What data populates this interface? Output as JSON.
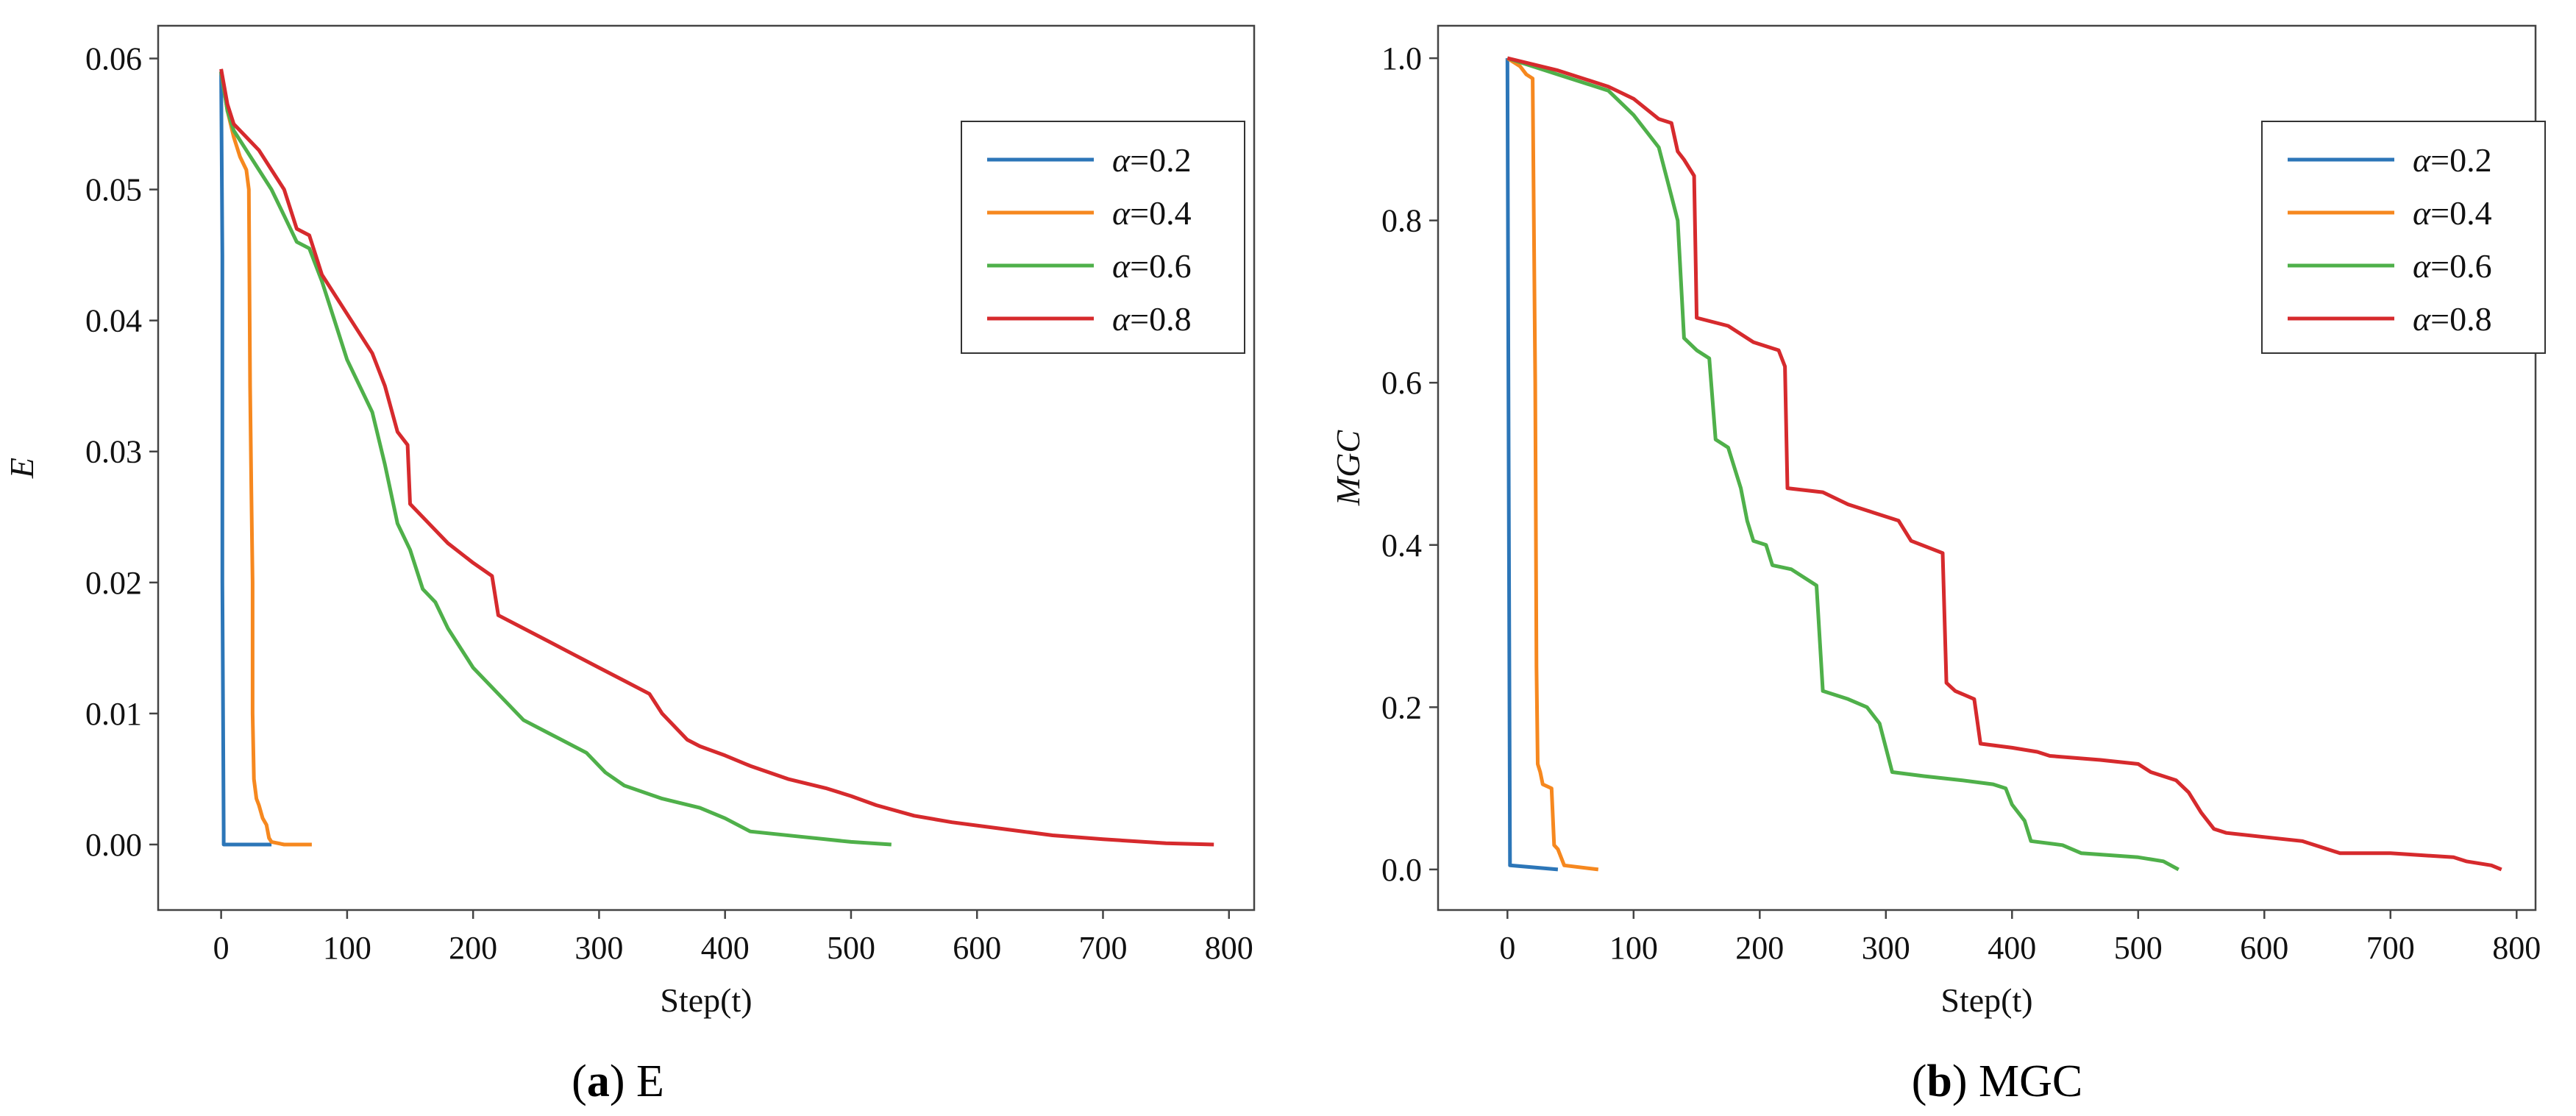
{
  "series_colors": [
    "#2c76b8",
    "#f6881f",
    "#4fb04a",
    "#d62a2d"
  ],
  "chart_data": [
    {
      "type": "line",
      "panel": "a",
      "caption_letter": "a",
      "caption_text": "E",
      "xlabel": "Step(t)",
      "ylabel": "E",
      "xlim": [
        -50,
        820
      ],
      "ylim": [
        -0.005,
        0.0625
      ],
      "xticks": [
        "0",
        "100",
        "200",
        "300",
        "400",
        "500",
        "600",
        "700",
        "800"
      ],
      "xtick_values": [
        0,
        100,
        200,
        300,
        400,
        500,
        600,
        700,
        800
      ],
      "yticks": [
        "0.00",
        "0.01",
        "0.02",
        "0.03",
        "0.04",
        "0.05",
        "0.06"
      ],
      "ytick_values": [
        0,
        0.01,
        0.02,
        0.03,
        0.04,
        0.05,
        0.06
      ],
      "legend_position": "top-right",
      "series": [
        {
          "name": "α=0.2",
          "legend_prefix": "α",
          "legend_value": "=0.2",
          "points": [
            [
              0,
              0.059
            ],
            [
              1,
              0.045
            ],
            [
              1,
              0.04
            ],
            [
              1,
              0.02
            ],
            [
              2,
              0.001
            ],
            [
              2,
              0
            ],
            [
              40,
              0
            ]
          ]
        },
        {
          "name": "α=0.4",
          "legend_prefix": "α",
          "legend_value": "=0.4",
          "points": [
            [
              0,
              0.059
            ],
            [
              5,
              0.056
            ],
            [
              10,
              0.054
            ],
            [
              15,
              0.0525
            ],
            [
              20,
              0.0515
            ],
            [
              22,
              0.05
            ],
            [
              23,
              0.035
            ],
            [
              24,
              0.027
            ],
            [
              25,
              0.02
            ],
            [
              25,
              0.01
            ],
            [
              26,
              0.005
            ],
            [
              28,
              0.0035
            ],
            [
              30,
              0.003
            ],
            [
              33,
              0.002
            ],
            [
              36,
              0.0015
            ],
            [
              38,
              0.0005
            ],
            [
              40,
              0.0002
            ],
            [
              50,
              0
            ],
            [
              72,
              0
            ]
          ]
        },
        {
          "name": "α=0.6",
          "legend_prefix": "α",
          "legend_value": "=0.6",
          "points": [
            [
              0,
              0.059
            ],
            [
              5,
              0.056
            ],
            [
              10,
              0.0545
            ],
            [
              20,
              0.053
            ],
            [
              30,
              0.0515
            ],
            [
              40,
              0.05
            ],
            [
              50,
              0.048
            ],
            [
              60,
              0.046
            ],
            [
              70,
              0.0455
            ],
            [
              80,
              0.043
            ],
            [
              90,
              0.04
            ],
            [
              100,
              0.037
            ],
            [
              110,
              0.035
            ],
            [
              120,
              0.033
            ],
            [
              130,
              0.029
            ],
            [
              140,
              0.0245
            ],
            [
              150,
              0.0225
            ],
            [
              160,
              0.0195
            ],
            [
              170,
              0.0185
            ],
            [
              180,
              0.0165
            ],
            [
              200,
              0.0135
            ],
            [
              220,
              0.0115
            ],
            [
              240,
              0.0095
            ],
            [
              260,
              0.0085
            ],
            [
              290,
              0.007
            ],
            [
              305,
              0.0055
            ],
            [
              320,
              0.0045
            ],
            [
              350,
              0.0035
            ],
            [
              380,
              0.0028
            ],
            [
              400,
              0.002
            ],
            [
              420,
              0.001
            ],
            [
              460,
              0.0006
            ],
            [
              500,
              0.0002
            ],
            [
              532,
              0
            ]
          ]
        },
        {
          "name": "α=0.8",
          "legend_prefix": "α",
          "legend_value": "=0.8",
          "points": [
            [
              0,
              0.0592
            ],
            [
              5,
              0.0565
            ],
            [
              10,
              0.055
            ],
            [
              20,
              0.054
            ],
            [
              30,
              0.053
            ],
            [
              40,
              0.0515
            ],
            [
              50,
              0.05
            ],
            [
              60,
              0.047
            ],
            [
              70,
              0.0465
            ],
            [
              80,
              0.0435
            ],
            [
              90,
              0.042
            ],
            [
              100,
              0.0405
            ],
            [
              120,
              0.0375
            ],
            [
              130,
              0.035
            ],
            [
              140,
              0.0315
            ],
            [
              148,
              0.0305
            ],
            [
              150,
              0.026
            ],
            [
              165,
              0.0245
            ],
            [
              180,
              0.023
            ],
            [
              200,
              0.0215
            ],
            [
              215,
              0.0205
            ],
            [
              220,
              0.0175
            ],
            [
              240,
              0.0165
            ],
            [
              260,
              0.0155
            ],
            [
              280,
              0.0145
            ],
            [
              300,
              0.0135
            ],
            [
              320,
              0.0125
            ],
            [
              340,
              0.0115
            ],
            [
              350,
              0.01
            ],
            [
              370,
              0.008
            ],
            [
              380,
              0.0075
            ],
            [
              400,
              0.0068
            ],
            [
              420,
              0.006
            ],
            [
              450,
              0.005
            ],
            [
              480,
              0.0043
            ],
            [
              500,
              0.0037
            ],
            [
              520,
              0.003
            ],
            [
              550,
              0.0022
            ],
            [
              580,
              0.0017
            ],
            [
              620,
              0.0012
            ],
            [
              660,
              0.0007
            ],
            [
              700,
              0.0004
            ],
            [
              750,
              0.0001
            ],
            [
              788,
              0
            ]
          ]
        }
      ]
    },
    {
      "type": "line",
      "panel": "b",
      "caption_letter": "b",
      "caption_text": "MGC",
      "xlabel": "Step(t)",
      "ylabel": "MGC",
      "xlim": [
        -55,
        815
      ],
      "ylim": [
        -0.05,
        1.04
      ],
      "xticks": [
        "0",
        "100",
        "200",
        "300",
        "400",
        "500",
        "600",
        "700",
        "800"
      ],
      "xtick_values": [
        0,
        100,
        200,
        300,
        400,
        500,
        600,
        700,
        800
      ],
      "yticks": [
        "0.0",
        "0.2",
        "0.4",
        "0.6",
        "0.8",
        "1.0"
      ],
      "ytick_values": [
        0,
        0.2,
        0.4,
        0.6,
        0.8,
        1.0
      ],
      "legend_position": "top-right",
      "series": [
        {
          "name": "α=0.2",
          "legend_prefix": "α",
          "legend_value": "=0.2",
          "points": [
            [
              0,
              1.0
            ],
            [
              1,
              0.5
            ],
            [
              2,
              0.005
            ],
            [
              40,
              0.0
            ]
          ]
        },
        {
          "name": "α=0.4",
          "legend_prefix": "α",
          "legend_value": "=0.4",
          "points": [
            [
              0,
              1.0
            ],
            [
              10,
              0.99
            ],
            [
              15,
              0.98
            ],
            [
              20,
              0.975
            ],
            [
              22,
              0.6
            ],
            [
              23,
              0.25
            ],
            [
              24,
              0.13
            ],
            [
              26,
              0.12
            ],
            [
              28,
              0.105
            ],
            [
              35,
              0.1
            ],
            [
              37,
              0.03
            ],
            [
              40,
              0.025
            ],
            [
              45,
              0.005
            ],
            [
              72,
              0.0
            ]
          ]
        },
        {
          "name": "α=0.6",
          "legend_prefix": "α",
          "legend_value": "=0.6",
          "points": [
            [
              0,
              1.0
            ],
            [
              40,
              0.98
            ],
            [
              80,
              0.96
            ],
            [
              100,
              0.93
            ],
            [
              110,
              0.91
            ],
            [
              120,
              0.89
            ],
            [
              125,
              0.86
            ],
            [
              130,
              0.83
            ],
            [
              135,
              0.8
            ],
            [
              140,
              0.655
            ],
            [
              150,
              0.64
            ],
            [
              160,
              0.63
            ],
            [
              165,
              0.53
            ],
            [
              175,
              0.52
            ],
            [
              185,
              0.47
            ],
            [
              190,
              0.43
            ],
            [
              195,
              0.405
            ],
            [
              205,
              0.4
            ],
            [
              210,
              0.375
            ],
            [
              225,
              0.37
            ],
            [
              245,
              0.35
            ],
            [
              250,
              0.22
            ],
            [
              270,
              0.21
            ],
            [
              285,
              0.2
            ],
            [
              295,
              0.18
            ],
            [
              305,
              0.12
            ],
            [
              330,
              0.115
            ],
            [
              360,
              0.11
            ],
            [
              385,
              0.105
            ],
            [
              395,
              0.1
            ],
            [
              400,
              0.08
            ],
            [
              410,
              0.06
            ],
            [
              415,
              0.035
            ],
            [
              440,
              0.03
            ],
            [
              455,
              0.02
            ],
            [
              500,
              0.015
            ],
            [
              520,
              0.01
            ],
            [
              532,
              0.0
            ]
          ]
        },
        {
          "name": "α=0.8",
          "legend_prefix": "α",
          "legend_value": "=0.8",
          "points": [
            [
              0,
              1.0
            ],
            [
              40,
              0.985
            ],
            [
              80,
              0.965
            ],
            [
              100,
              0.95
            ],
            [
              120,
              0.925
            ],
            [
              130,
              0.92
            ],
            [
              135,
              0.885
            ],
            [
              140,
              0.875
            ],
            [
              148,
              0.855
            ],
            [
              150,
              0.68
            ],
            [
              175,
              0.67
            ],
            [
              195,
              0.65
            ],
            [
              215,
              0.64
            ],
            [
              220,
              0.62
            ],
            [
              222,
              0.47
            ],
            [
              250,
              0.465
            ],
            [
              270,
              0.45
            ],
            [
              290,
              0.44
            ],
            [
              310,
              0.43
            ],
            [
              320,
              0.405
            ],
            [
              345,
              0.39
            ],
            [
              348,
              0.23
            ],
            [
              355,
              0.22
            ],
            [
              370,
              0.21
            ],
            [
              375,
              0.155
            ],
            [
              400,
              0.15
            ],
            [
              420,
              0.145
            ],
            [
              430,
              0.14
            ],
            [
              470,
              0.135
            ],
            [
              500,
              0.13
            ],
            [
              510,
              0.12
            ],
            [
              530,
              0.11
            ],
            [
              540,
              0.095
            ],
            [
              550,
              0.07
            ],
            [
              560,
              0.05
            ],
            [
              570,
              0.045
            ],
            [
              600,
              0.04
            ],
            [
              630,
              0.035
            ],
            [
              640,
              0.03
            ],
            [
              660,
              0.02
            ],
            [
              700,
              0.02
            ],
            [
              750,
              0.015
            ],
            [
              760,
              0.01
            ],
            [
              780,
              0.005
            ],
            [
              788,
              0.0
            ]
          ]
        }
      ]
    }
  ]
}
